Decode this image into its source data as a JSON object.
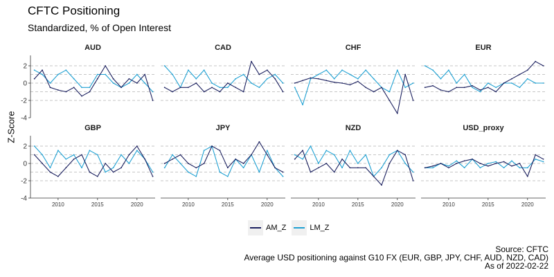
{
  "title": "CFTC Positioning",
  "subtitle": "Standardized, % of Open Interest",
  "caption": [
    "Source: CFTC",
    "Average USD positioning against G10 FX (EUR, GBP, JPY, CHF, AUD, NZD, CAD)",
    "As of 2022-02-22"
  ],
  "colors": {
    "AM_Z": "#1a1f5e",
    "LM_Z": "#1ea0d2",
    "grid": "#b3b3b3"
  },
  "chart_data": {
    "type": "line",
    "facets": [
      "AUD",
      "CAD",
      "CHF",
      "EUR",
      "GBP",
      "JPY",
      "NZD",
      "USD_proxy"
    ],
    "xlabel": "",
    "ylabel": "Z-Score",
    "xlim": [
      2006.5,
      2022.3
    ],
    "x_ticks": [
      2010,
      2015,
      2020
    ],
    "x_tick_labels": [
      "2010",
      "2015",
      "2020"
    ],
    "ylim": [
      -4,
      3.2
    ],
    "y_ticks": [
      2,
      0,
      -2,
      -4
    ],
    "y_tick_labels": [
      "2",
      "0",
      "-2",
      "-4"
    ],
    "gridlines_y": [
      2,
      1,
      0,
      -1,
      -2
    ],
    "grid_style": "dashed horizontal",
    "x": [
      2007.0,
      2008.0,
      2009.0,
      2010.0,
      2011.0,
      2012.0,
      2013.0,
      2014.0,
      2015.0,
      2016.0,
      2017.0,
      2018.0,
      2019.0,
      2020.0,
      2021.0,
      2022.0
    ],
    "series": [
      {
        "name": "AM_Z",
        "values": {
          "AUD": [
            0.5,
            1.5,
            -0.5,
            -0.8,
            -1.0,
            -0.5,
            -1.5,
            -1.0,
            0.5,
            2.0,
            0.5,
            -0.5,
            0.5,
            0.0,
            1.0,
            -2.0
          ],
          "CAD": [
            -0.5,
            -1.0,
            -0.5,
            -0.5,
            0.0,
            -1.0,
            -0.5,
            -1.0,
            0.0,
            -0.5,
            -1.0,
            2.5,
            1.0,
            1.5,
            0.5,
            -1.0
          ],
          "CHF": [
            0.0,
            0.3,
            0.6,
            0.5,
            0.3,
            0.1,
            0.0,
            -0.2,
            0.2,
            -0.5,
            -1.0,
            -0.5,
            -2.0,
            -3.5,
            1.0,
            -2.0
          ],
          "EUR": [
            -0.5,
            -0.3,
            -0.8,
            -1.0,
            -0.5,
            -0.5,
            -0.3,
            -0.8,
            -0.5,
            -1.0,
            0.0,
            0.5,
            1.0,
            1.5,
            2.5,
            2.0
          ],
          "GBP": [
            1.0,
            0.0,
            -1.0,
            -1.5,
            -0.5,
            0.5,
            1.0,
            -1.0,
            -1.5,
            0.0,
            -1.0,
            -0.5,
            1.0,
            2.0,
            0.5,
            -1.5
          ],
          "JPY": [
            0.0,
            0.5,
            1.0,
            0.0,
            -0.5,
            0.0,
            2.0,
            1.5,
            -0.5,
            0.5,
            0.0,
            1.0,
            2.5,
            1.0,
            -0.5,
            -1.0
          ],
          "NZD": [
            0.5,
            1.5,
            -1.0,
            -0.5,
            0.0,
            -1.0,
            0.5,
            -0.5,
            -0.5,
            -0.5,
            -1.5,
            -2.5,
            0.0,
            1.5,
            1.0,
            -2.0
          ],
          "USD_proxy": [
            -0.5,
            -0.3,
            0.0,
            -0.5,
            0.0,
            0.3,
            0.5,
            0.0,
            -0.3,
            0.0,
            0.2,
            -0.3,
            0.0,
            -1.5,
            1.0,
            0.5
          ]
        }
      },
      {
        "name": "LM_Z",
        "values": {
          "AUD": [
            1.5,
            1.0,
            0.0,
            1.0,
            1.5,
            0.5,
            -0.5,
            -0.5,
            1.0,
            1.0,
            0.0,
            -0.5,
            0.0,
            1.0,
            0.0,
            -1.0
          ],
          "CAD": [
            2.0,
            1.0,
            -0.5,
            1.5,
            0.5,
            1.5,
            0.0,
            -0.5,
            -0.5,
            0.5,
            1.0,
            0.0,
            -0.5,
            0.5,
            1.0,
            0.0
          ],
          "CHF": [
            -0.5,
            -2.5,
            0.5,
            1.0,
            1.5,
            0.5,
            1.5,
            1.0,
            0.5,
            1.5,
            0.5,
            -0.5,
            -1.0,
            1.5,
            -0.5,
            0.0
          ],
          "EUR": [
            2.0,
            1.5,
            0.5,
            1.5,
            0.0,
            1.0,
            -0.5,
            -1.0,
            0.0,
            -0.5,
            0.0,
            0.0,
            -0.5,
            0.5,
            0.0,
            0.0
          ],
          "GBP": [
            2.0,
            1.0,
            -0.5,
            1.5,
            0.5,
            1.0,
            -0.5,
            1.5,
            1.0,
            -1.0,
            -0.5,
            1.0,
            0.0,
            1.5,
            0.5,
            -1.0
          ],
          "JPY": [
            -0.5,
            1.0,
            0.0,
            -1.0,
            -1.5,
            1.5,
            2.0,
            -1.0,
            -1.5,
            0.5,
            -0.5,
            1.0,
            -1.0,
            1.5,
            -0.5,
            -1.5
          ],
          "NZD": [
            1.0,
            0.5,
            2.0,
            0.0,
            1.5,
            1.0,
            -0.5,
            1.5,
            0.0,
            1.0,
            -1.5,
            -0.5,
            1.0,
            1.5,
            0.0,
            -1.0
          ],
          "USD_proxy": [
            -0.5,
            -0.5,
            0.0,
            -0.3,
            0.3,
            -0.5,
            0.5,
            -0.5,
            0.0,
            0.2,
            -0.5,
            0.3,
            -0.5,
            -0.5,
            0.5,
            0.2
          ]
        }
      }
    ],
    "legend": {
      "position": "bottom",
      "entries": [
        "AM_Z",
        "LM_Z"
      ]
    }
  }
}
